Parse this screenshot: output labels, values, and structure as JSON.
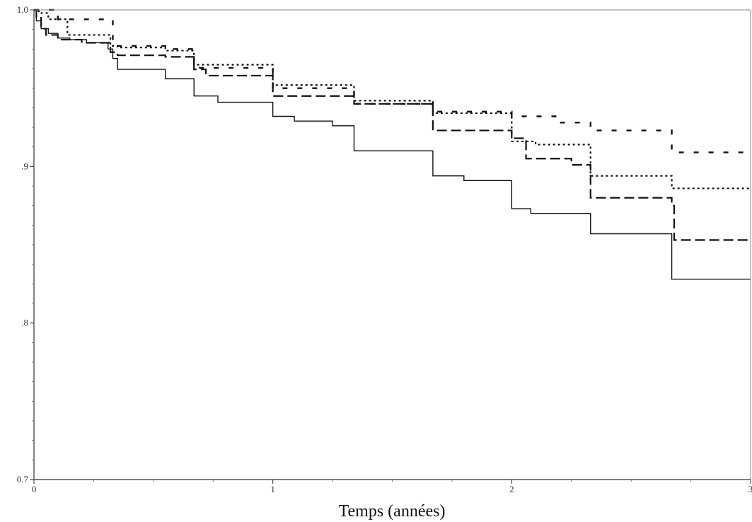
{
  "chart_data": {
    "type": "line",
    "step": true,
    "xlabel": "Temps (années)",
    "ylabel": "",
    "xlim": [
      0,
      3
    ],
    "ylim": [
      0.7,
      1.0
    ],
    "x_ticks": [
      {
        "value": 0,
        "label": "0"
      },
      {
        "value": 1,
        "label": "1"
      },
      {
        "value": 2,
        "label": "2"
      },
      {
        "value": 3,
        "label": "3"
      }
    ],
    "y_ticks": [
      {
        "value": 0.7,
        "label": "0.7"
      },
      {
        "value": 0.8,
        "label": ".8"
      },
      {
        "value": 0.9,
        "label": ".9"
      },
      {
        "value": 1.0,
        "label": "1.0"
      }
    ],
    "grid": false,
    "series": [
      {
        "style": "solid",
        "x": [
          0,
          0.01,
          0.03,
          0.06,
          0.1,
          0.15,
          0.22,
          0.31,
          0.33,
          0.35,
          0.55,
          0.67,
          0.77,
          1.0,
          1.09,
          1.25,
          1.34,
          1.67,
          1.8,
          2.0,
          2.08,
          2.33,
          2.67,
          3.0
        ],
        "y": [
          1.0,
          0.993,
          0.988,
          0.985,
          0.982,
          0.981,
          0.979,
          0.975,
          0.969,
          0.962,
          0.956,
          0.945,
          0.941,
          0.932,
          0.929,
          0.926,
          0.91,
          0.894,
          0.891,
          0.873,
          0.87,
          0.857,
          0.828,
          0.828
        ]
      },
      {
        "style": "dashed",
        "x": [
          0,
          0.01,
          0.03,
          0.05,
          0.1,
          0.2,
          0.32,
          0.35,
          0.55,
          0.67,
          0.72,
          1.0,
          1.34,
          1.67,
          2.0,
          2.06,
          2.25,
          2.33,
          2.67,
          2.68,
          3.0
        ],
        "y": [
          1.0,
          0.995,
          0.988,
          0.984,
          0.981,
          0.979,
          0.973,
          0.971,
          0.97,
          0.962,
          0.958,
          0.945,
          0.94,
          0.923,
          0.918,
          0.905,
          0.901,
          0.88,
          0.875,
          0.853,
          0.853
        ]
      },
      {
        "style": "dotted",
        "x": [
          0,
          0.02,
          0.06,
          0.14,
          0.32,
          0.35,
          0.55,
          0.67,
          1.0,
          1.34,
          1.67,
          2.0,
          2.1,
          2.33,
          2.67,
          3.0
        ],
        "y": [
          1.0,
          0.998,
          0.994,
          0.984,
          0.977,
          0.976,
          0.974,
          0.965,
          0.952,
          0.942,
          0.934,
          0.916,
          0.914,
          0.894,
          0.886,
          0.886
        ]
      },
      {
        "style": "sparse-dashed",
        "x": [
          0,
          0.1,
          0.33,
          0.35,
          0.55,
          0.67,
          1.0,
          1.34,
          1.67,
          2.0,
          2.2,
          2.33,
          2.67,
          3.0
        ],
        "y": [
          1.0,
          0.994,
          0.978,
          0.977,
          0.975,
          0.963,
          0.95,
          0.94,
          0.935,
          0.932,
          0.928,
          0.923,
          0.909,
          0.909
        ]
      }
    ]
  }
}
